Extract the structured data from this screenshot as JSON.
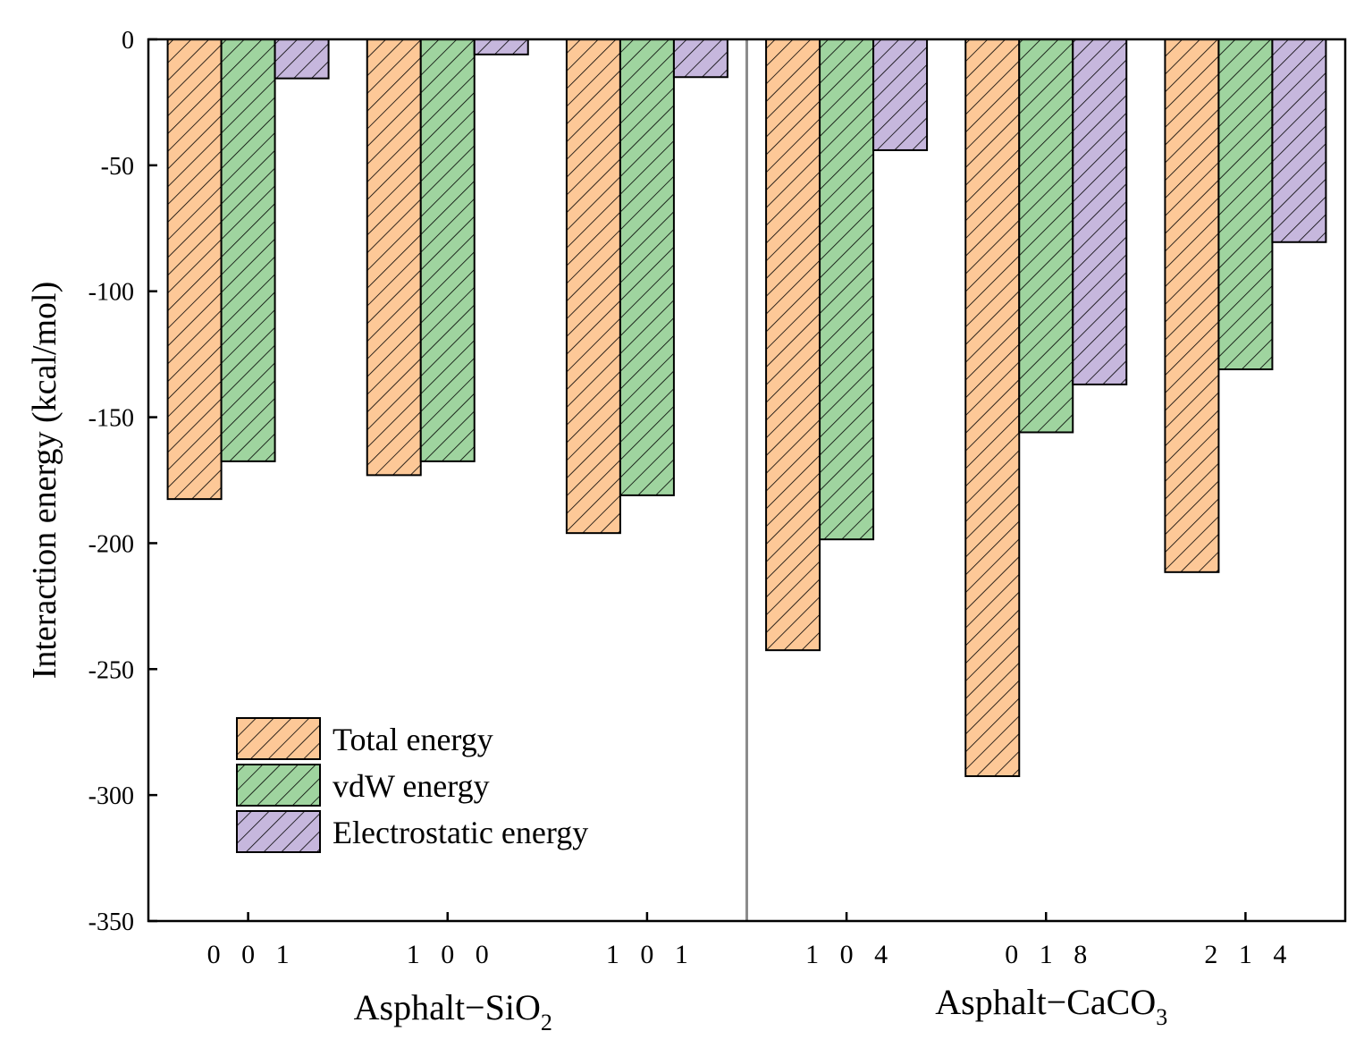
{
  "chart_data": {
    "type": "bar",
    "categories": [
      "0 0 1",
      "1 0 0",
      "1 0 1",
      "1 0 4",
      "0 1 8",
      "2 1 4"
    ],
    "series": [
      {
        "name": "Total energy",
        "color": "#fdc897",
        "values": [
          -182.5,
          -173.0,
          -196.0,
          -242.5,
          -292.5,
          -211.5
        ]
      },
      {
        "name": "vdW energy",
        "color": "#9fd49f",
        "values": [
          -167.5,
          -167.5,
          -181.0,
          -198.5,
          -156.0,
          -131.0
        ]
      },
      {
        "name": "Electrostatic energy",
        "color": "#c6b7dd",
        "values": [
          -15.5,
          -6.0,
          -15.0,
          -44.0,
          -137.0,
          -80.5
        ]
      }
    ],
    "groups": [
      {
        "main": "Asphalt−SiO",
        "sub": "2",
        "categories": [
          "0 0 1",
          "1 0 0",
          "1 0 1"
        ]
      },
      {
        "main": "Asphalt−CaCO",
        "sub": "3",
        "categories": [
          "1 0 4",
          "0 1 8",
          "2 1 4"
        ]
      }
    ],
    "ylabel": "Interaction energy (kcal/mol)",
    "xlabel": "",
    "ylim": [
      -350,
      0
    ],
    "yticks": [
      0,
      -50,
      -100,
      -150,
      -200,
      -250,
      -300,
      -350
    ],
    "ytick_labels": [
      "0",
      "-50",
      "-100",
      "-150",
      "-200",
      "-250",
      "-300",
      "-350"
    ],
    "legend_position": "bottom-left",
    "bar_pattern": "diagonal-hatch",
    "grid": false
  }
}
